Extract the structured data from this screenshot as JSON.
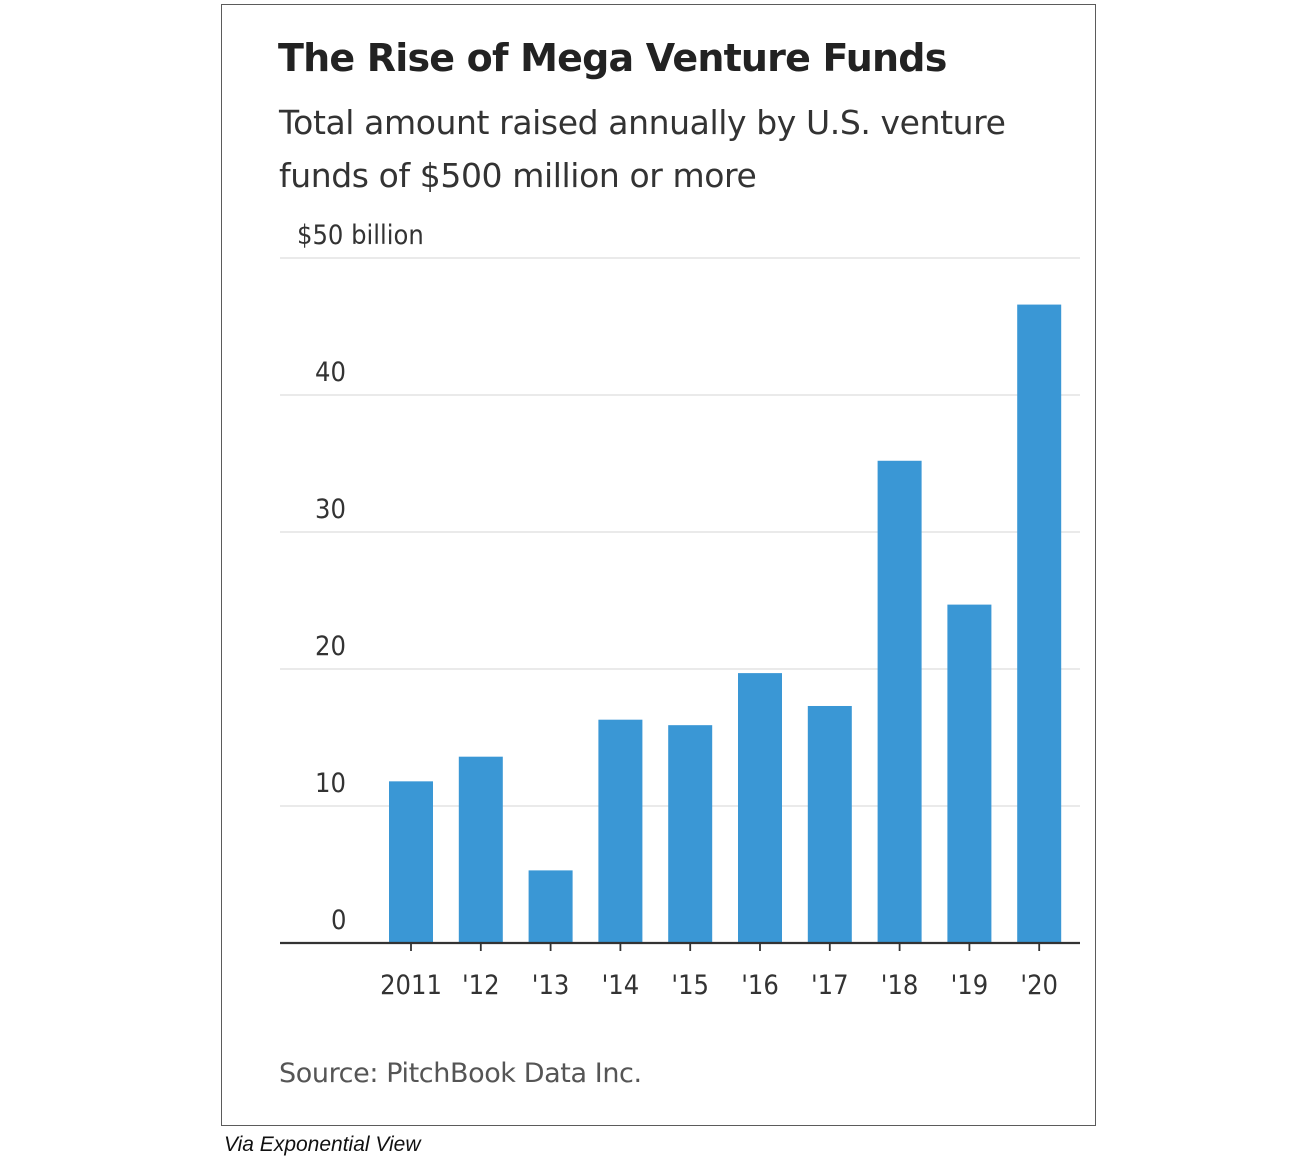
{
  "chart_data": {
    "type": "bar",
    "title": "The Rise of Mega Venture Funds",
    "subtitle": "Total amount raised annually by U.S. venture funds of $500 million or more",
    "categories": [
      "2011",
      "'12",
      "'13",
      "'14",
      "'15",
      "'16",
      "'17",
      "'18",
      "'19",
      "'20"
    ],
    "values": [
      11.8,
      13.6,
      5.3,
      16.3,
      15.9,
      19.7,
      17.3,
      35.2,
      24.7,
      46.6
    ],
    "ylim": [
      0,
      50
    ],
    "yticks": [
      0,
      10,
      20,
      30,
      40,
      50
    ],
    "ytick_labels": [
      "0",
      "10",
      "20",
      "30",
      "40",
      "$50 billion"
    ],
    "grid": true,
    "bar_color": "#3a97d5",
    "source": "Source: PitchBook Data Inc."
  },
  "caption": "Via Exponential View"
}
